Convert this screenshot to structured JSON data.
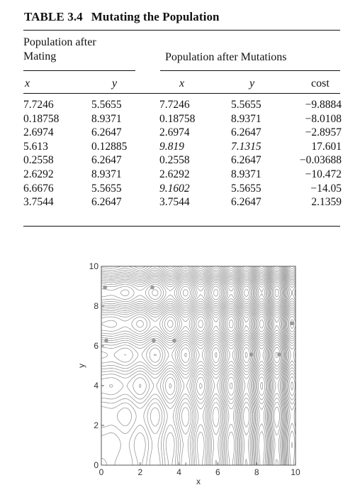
{
  "table": {
    "number": "TABLE 3.4",
    "title": "Mutating the Population",
    "group_mating_line1": "Population after",
    "group_mating_line2": "Mating",
    "group_mutations": "Population after Mutations",
    "columns": [
      "x",
      "y",
      "x",
      "y",
      "cost"
    ],
    "rows": [
      {
        "x1": "7.7246",
        "y1": "5.5655",
        "x2": "7.7246",
        "y2": "5.5655",
        "cost": "−9.8884",
        "x2_mut": false,
        "y2_mut": false
      },
      {
        "x1": "0.18758",
        "y1": "8.9371",
        "x2": "0.18758",
        "y2": "8.9371",
        "cost": "−8.0108",
        "x2_mut": false,
        "y2_mut": false
      },
      {
        "x1": "2.6974",
        "y1": "6.2647",
        "x2": "2.6974",
        "y2": "6.2647",
        "cost": "−2.8957",
        "x2_mut": false,
        "y2_mut": false
      },
      {
        "x1": "5.613",
        "y1": "0.12885",
        "x2": "9.819",
        "y2": "7.1315",
        "cost": "17.601",
        "x2_mut": true,
        "y2_mut": true
      },
      {
        "x1": "0.2558",
        "y1": "6.2647",
        "x2": "0.2558",
        "y2": "6.2647",
        "cost": "−0.03688",
        "x2_mut": false,
        "y2_mut": false
      },
      {
        "x1": "2.6292",
        "y1": "8.9371",
        "x2": "2.6292",
        "y2": "8.9371",
        "cost": "−10.472",
        "x2_mut": false,
        "y2_mut": false
      },
      {
        "x1": "6.6676",
        "y1": "5.5655",
        "x2": "9.1602",
        "y2": "5.5655",
        "cost": "−14.05",
        "x2_mut": true,
        "y2_mut": false
      },
      {
        "x1": "3.7544",
        "y1": "6.2647",
        "x2": "3.7544",
        "y2": "6.2647",
        "cost": "2.1359",
        "x2_mut": false,
        "y2_mut": false
      }
    ]
  },
  "chart_data": {
    "type": "scatter",
    "title": "",
    "xlabel": "x",
    "ylabel": "y",
    "xlim": [
      0,
      10
    ],
    "ylim": [
      0,
      10
    ],
    "xticks": [
      "0",
      "2",
      "4",
      "6",
      "8",
      "10"
    ],
    "yticks": [
      "0",
      "2",
      "4",
      "6",
      "8",
      "10"
    ],
    "grid": false,
    "background": "contour lines of cost function",
    "points": [
      {
        "x": 7.7246,
        "y": 5.5655
      },
      {
        "x": 0.18758,
        "y": 8.9371
      },
      {
        "x": 2.6974,
        "y": 6.2647
      },
      {
        "x": 9.819,
        "y": 7.1315
      },
      {
        "x": 0.2558,
        "y": 6.2647
      },
      {
        "x": 2.6292,
        "y": 8.9371
      },
      {
        "x": 9.1602,
        "y": 5.5655
      },
      {
        "x": 3.7544,
        "y": 6.2647
      }
    ],
    "point_color": "#999999",
    "contour_color": "#8c8c8c"
  }
}
